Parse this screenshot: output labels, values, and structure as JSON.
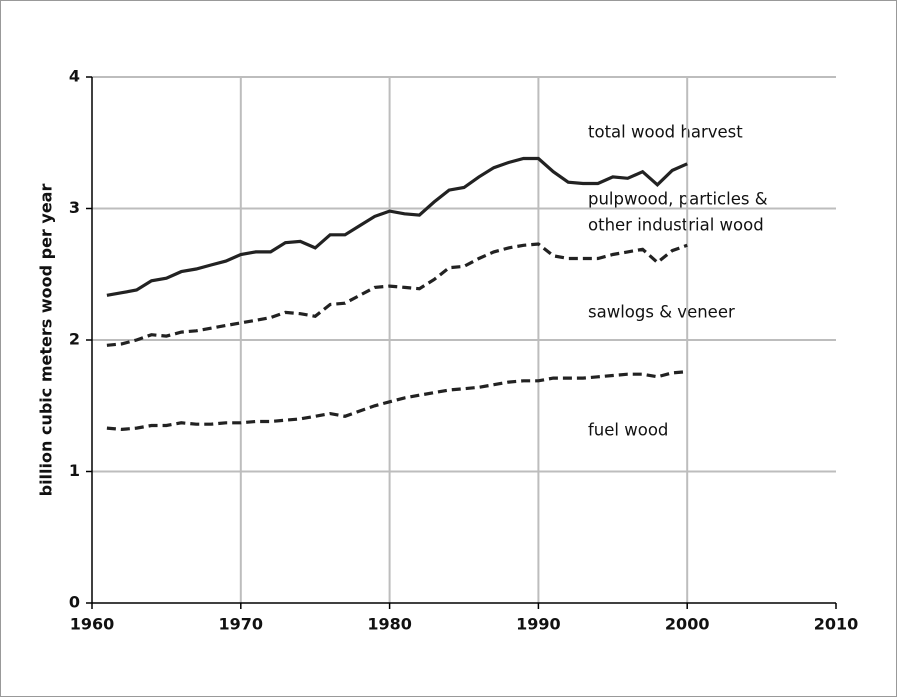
{
  "chart_data": {
    "type": "line",
    "ylabel": "billion cubic meters wood per year",
    "annotations": [
      "total wood harvest",
      "pulpwood, particles &",
      "other industrial wood",
      "sawlogs & veneer",
      "fuel wood"
    ],
    "x": [
      1961,
      1962,
      1963,
      1964,
      1965,
      1966,
      1967,
      1968,
      1969,
      1970,
      1971,
      1972,
      1973,
      1974,
      1975,
      1976,
      1977,
      1978,
      1979,
      1980,
      1981,
      1982,
      1983,
      1984,
      1985,
      1986,
      1987,
      1988,
      1989,
      1990,
      1991,
      1992,
      1993,
      1994,
      1995,
      1996,
      1997,
      1998,
      1999,
      2000
    ],
    "series": [
      {
        "color": "#222222",
        "style": "solid",
        "values": [
          2.34,
          2.36,
          2.38,
          2.45,
          2.47,
          2.52,
          2.54,
          2.57,
          2.6,
          2.65,
          2.67,
          2.67,
          2.74,
          2.75,
          2.7,
          2.8,
          2.8,
          2.87,
          2.94,
          2.98,
          2.96,
          2.95,
          3.05,
          3.14,
          3.16,
          3.24,
          3.31,
          3.35,
          3.38,
          3.38,
          3.28,
          3.2,
          3.19,
          3.19,
          3.24,
          3.23,
          3.28,
          3.18,
          3.29,
          3.34
        ]
      },
      {
        "color": "#222222",
        "style": "dashed",
        "values": [
          1.96,
          1.97,
          2.0,
          2.04,
          2.03,
          2.06,
          2.07,
          2.09,
          2.11,
          2.13,
          2.15,
          2.17,
          2.21,
          2.2,
          2.18,
          2.27,
          2.28,
          2.34,
          2.4,
          2.41,
          2.4,
          2.39,
          2.46,
          2.55,
          2.56,
          2.62,
          2.67,
          2.7,
          2.72,
          2.73,
          2.64,
          2.62,
          2.62,
          2.62,
          2.65,
          2.67,
          2.69,
          2.59,
          2.68,
          2.72
        ]
      },
      {
        "color": "#222222",
        "style": "dashed",
        "values": [
          1.33,
          1.32,
          1.33,
          1.35,
          1.35,
          1.37,
          1.36,
          1.36,
          1.37,
          1.37,
          1.38,
          1.38,
          1.39,
          1.4,
          1.42,
          1.44,
          1.42,
          1.46,
          1.5,
          1.53,
          1.56,
          1.58,
          1.6,
          1.62,
          1.63,
          1.64,
          1.66,
          1.68,
          1.69,
          1.69,
          1.71,
          1.71,
          1.71,
          1.72,
          1.73,
          1.74,
          1.74,
          1.72,
          1.75,
          1.76
        ]
      }
    ],
    "xlim": [
      1960,
      2010
    ],
    "xticks": [
      1960,
      1970,
      1980,
      1990,
      2000,
      2010
    ],
    "ylim": [
      0,
      4
    ],
    "yticks": [
      0,
      1,
      2,
      3,
      4
    ],
    "grid": true
  }
}
